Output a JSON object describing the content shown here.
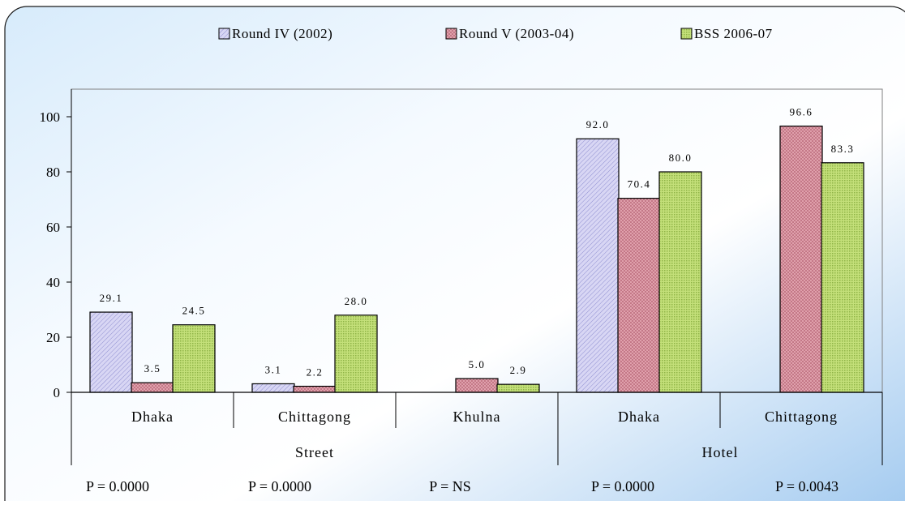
{
  "colors": {
    "bg_light": "#ffffff",
    "bg_blue": "#a9cff2",
    "series": [
      "#c8c6ee",
      "#dd9aa6",
      "#b9d86b"
    ],
    "series_stripe": [
      "#7f7fc8",
      "#a05565",
      "#7fa837"
    ]
  },
  "chart_data": {
    "type": "bar",
    "title": "",
    "xlabel": "",
    "ylabel": "",
    "ylim": [
      0,
      100
    ],
    "yticks": [
      0,
      20,
      40,
      60,
      80,
      100
    ],
    "grid": false,
    "legend_position": "top",
    "categories": [
      "Dhaka",
      "Chittagong",
      "Khulna",
      "Dhaka",
      "Chittagong"
    ],
    "groups": [
      {
        "label": "Street",
        "span": [
          0,
          2
        ]
      },
      {
        "label": "Hotel",
        "span": [
          3,
          4
        ]
      }
    ],
    "p_values": [
      "P = 0.0000",
      "P = 0.0000",
      "P = NS",
      "P = 0.0000",
      "P = 0.0043"
    ],
    "series": [
      {
        "name": "Round IV (2002)",
        "values": [
          29.1,
          3.1,
          null,
          92.0,
          null
        ],
        "labels": [
          "29.1",
          "3.1",
          null,
          "92.0",
          null
        ]
      },
      {
        "name": "Round V (2003-04)",
        "values": [
          3.5,
          2.2,
          5.0,
          70.4,
          96.6
        ],
        "labels": [
          "3.5",
          "2.2",
          "5.0",
          "70.4",
          "96.6"
        ]
      },
      {
        "name": "BSS 2006-07",
        "values": [
          24.5,
          28.0,
          2.9,
          80.0,
          83.3
        ],
        "labels": [
          "24.5",
          "28.0",
          "2.9",
          "80.0",
          "83.3"
        ]
      }
    ]
  }
}
